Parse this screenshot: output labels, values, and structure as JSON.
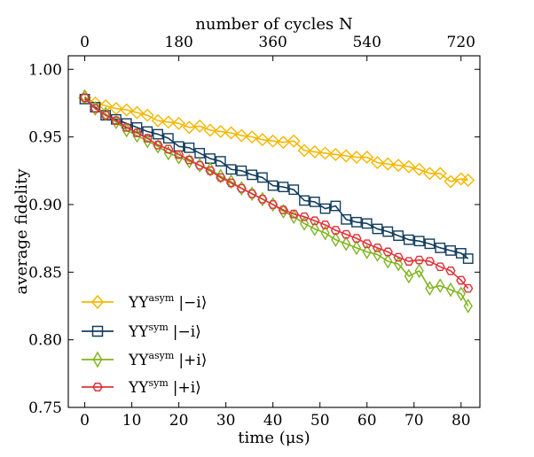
{
  "chart_data": {
    "type": "line",
    "xlabel": "time (μs)",
    "ylabel": "average fidelity",
    "top_xlabel": "number of cycles N",
    "xlim": [
      -3.5,
      84
    ],
    "ylim": [
      0.75,
      1.01
    ],
    "x_ticks": [
      0,
      10,
      20,
      30,
      40,
      50,
      60,
      70,
      80
    ],
    "y_ticks": [
      0.75,
      0.8,
      0.85,
      0.9,
      0.95,
      1.0
    ],
    "y_tick_labels": [
      "0.75",
      "0.80",
      "0.85",
      "0.90",
      "0.95",
      "1.00"
    ],
    "top_ticks": [
      "0",
      "180",
      "360",
      "540",
      "720"
    ],
    "cycles_to_time_factor": 0.1111,
    "x": [
      0,
      2.22,
      4.44,
      6.67,
      8.89,
      11.11,
      13.33,
      15.56,
      17.78,
      20,
      22.22,
      24.44,
      26.67,
      28.89,
      31.11,
      33.33,
      35.56,
      37.78,
      40,
      42.22,
      44.44,
      46.67,
      48.89,
      51.11,
      53.33,
      55.56,
      57.78,
      60,
      62.22,
      64.44,
      66.67,
      68.89,
      71.11,
      73.33,
      75.56,
      77.78,
      80,
      81.5
    ],
    "series": [
      {
        "name": "YY^asym |−i⟩",
        "legend_main": "YY",
        "legend_sup": "asym",
        "legend_state": "|−i⟩",
        "color": "#f5b700",
        "marker": "diamond",
        "values": [
          0.979,
          0.975,
          0.973,
          0.971,
          0.97,
          0.968,
          0.966,
          0.962,
          0.961,
          0.96,
          0.957,
          0.958,
          0.955,
          0.954,
          0.953,
          0.951,
          0.95,
          0.948,
          0.947,
          0.946,
          0.947,
          0.94,
          0.939,
          0.938,
          0.937,
          0.936,
          0.935,
          0.935,
          0.931,
          0.93,
          0.929,
          0.928,
          0.926,
          0.923,
          0.923,
          0.917,
          0.919,
          0.918
        ]
      },
      {
        "name": "YY^sym |−i⟩",
        "legend_main": "YY",
        "legend_sup": "sym",
        "legend_state": "|−i⟩",
        "color": "#123d5e",
        "marker": "square",
        "values": [
          0.978,
          0.972,
          0.966,
          0.963,
          0.96,
          0.957,
          0.954,
          0.952,
          0.949,
          0.943,
          0.942,
          0.938,
          0.934,
          0.932,
          0.926,
          0.925,
          0.922,
          0.92,
          0.914,
          0.913,
          0.911,
          0.903,
          0.902,
          0.897,
          0.899,
          0.889,
          0.887,
          0.886,
          0.882,
          0.88,
          0.877,
          0.874,
          0.873,
          0.871,
          0.868,
          0.866,
          0.864,
          0.86
        ]
      },
      {
        "name": "YY^asym |+i⟩",
        "legend_main": "YY",
        "legend_sup": "asym",
        "legend_state": "|+i⟩",
        "color": "#7fb51f",
        "marker": "thin-diamond",
        "values": [
          0.98,
          0.971,
          0.967,
          0.961,
          0.955,
          0.951,
          0.947,
          0.943,
          0.938,
          0.935,
          0.932,
          0.929,
          0.926,
          0.921,
          0.917,
          0.912,
          0.908,
          0.904,
          0.9,
          0.895,
          0.891,
          0.886,
          0.882,
          0.879,
          0.874,
          0.871,
          0.868,
          0.865,
          0.863,
          0.858,
          0.856,
          0.847,
          0.851,
          0.838,
          0.84,
          0.837,
          0.834,
          0.825
        ]
      },
      {
        "name": "YY^sym |+i⟩",
        "legend_main": "YY",
        "legend_sup": "sym",
        "legend_state": "|+i⟩",
        "color": "#e0323a",
        "marker": "hexagon",
        "values": [
          0.979,
          0.971,
          0.966,
          0.962,
          0.957,
          0.953,
          0.949,
          0.944,
          0.941,
          0.937,
          0.933,
          0.929,
          0.925,
          0.92,
          0.916,
          0.912,
          0.908,
          0.904,
          0.9,
          0.896,
          0.893,
          0.891,
          0.888,
          0.885,
          0.881,
          0.878,
          0.875,
          0.871,
          0.868,
          0.865,
          0.861,
          0.858,
          0.859,
          0.858,
          0.854,
          0.851,
          0.844,
          0.838
        ]
      }
    ],
    "legend_position": "lower-left",
    "grid": false
  }
}
